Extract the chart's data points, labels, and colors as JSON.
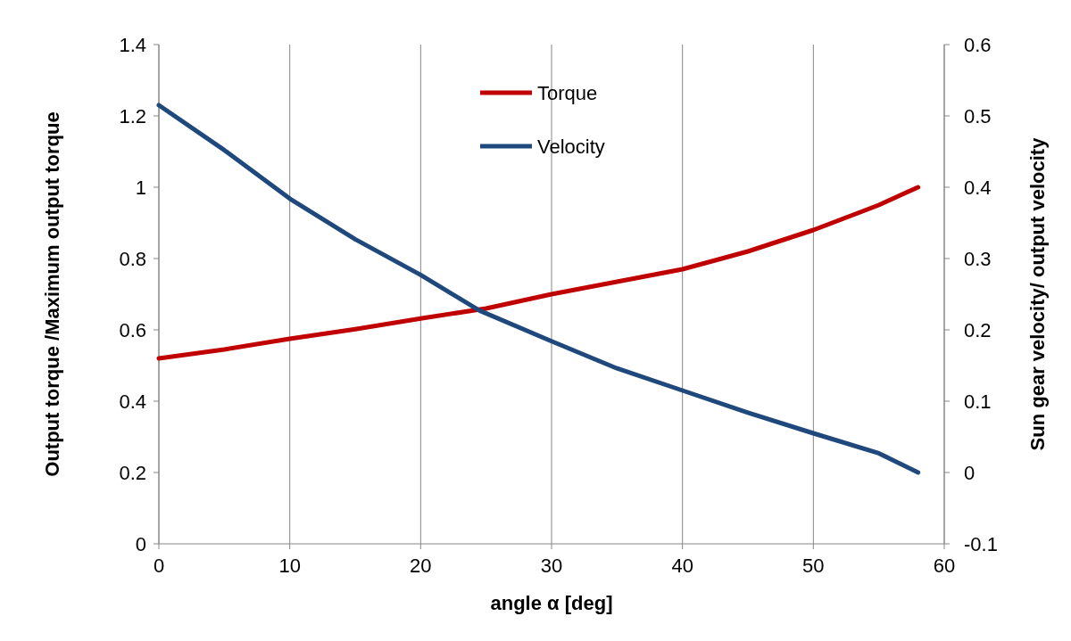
{
  "chart_data": {
    "type": "line",
    "xlabel": "angle α [deg]",
    "ylabel": "Output torque /Maximum output torque",
    "y2label": "Sun gear velocity/ output velocity",
    "xlim": [
      0,
      60
    ],
    "xticks": [
      0,
      10,
      20,
      30,
      40,
      50,
      60
    ],
    "ylim": [
      0,
      1.4
    ],
    "yticks": [
      0,
      0.2,
      0.4,
      0.6,
      0.8,
      1,
      1.2,
      1.4
    ],
    "y2lim": [
      -0.1,
      0.6
    ],
    "y2ticks": [
      -0.1,
      0,
      0.1,
      0.2,
      0.3,
      0.4,
      0.5,
      0.6
    ],
    "grid": "x",
    "legend": "top",
    "line_style": "solid",
    "marker": "none",
    "series": [
      {
        "name": "Torque",
        "color": "#c00000",
        "x": [
          0,
          5,
          10,
          15,
          20,
          25,
          30,
          35,
          40,
          45,
          50,
          55,
          58
        ],
        "values": [
          0.52,
          0.545,
          0.575,
          0.602,
          0.632,
          0.66,
          0.7,
          0.735,
          0.77,
          0.82,
          0.88,
          0.95,
          1.0
        ]
      },
      {
        "name": "Velocity",
        "color": "#1f497d",
        "axis": "y2",
        "x": [
          0,
          5,
          10,
          15,
          20,
          24.5,
          30,
          35,
          40,
          45,
          50,
          55,
          58
        ],
        "values": [
          0.515,
          0.452,
          0.384,
          0.327,
          0.277,
          0.227,
          0.184,
          0.146,
          0.115,
          0.084,
          0.055,
          0.027,
          0.0
        ]
      }
    ]
  }
}
